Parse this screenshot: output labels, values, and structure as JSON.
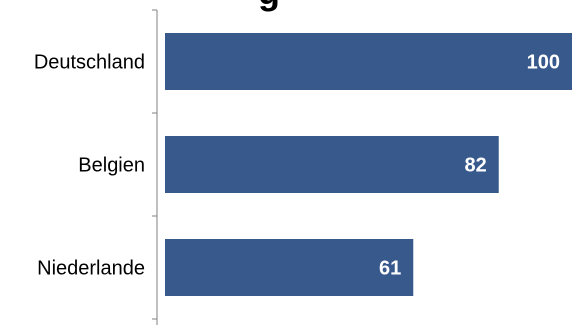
{
  "title_fragment": "g",
  "chart_data": {
    "type": "bar",
    "orientation": "horizontal",
    "categories": [
      "Deutschland",
      "Belgien",
      "Niederlande"
    ],
    "values": [
      100,
      82,
      61
    ],
    "xlim": [
      0,
      100
    ],
    "grid": false,
    "legend": "none",
    "bar_color": "#37598c"
  }
}
